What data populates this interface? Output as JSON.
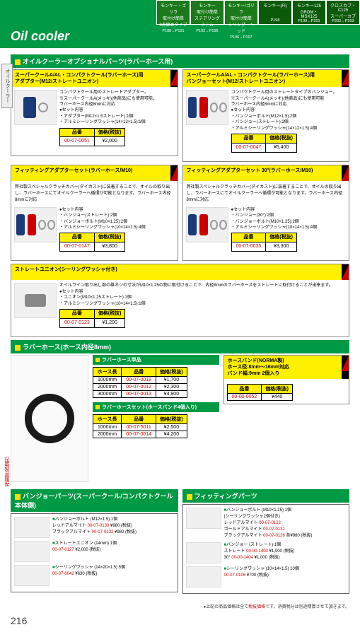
{
  "header": {
    "models": [
      {
        "name": "モンキー・ゴリラ\n取付け簡単\n3点締めタイプ",
        "range": "P188→P191",
        "has_img": true
      },
      {
        "name": "モンキー\n取付け簡単\nステアリングステム",
        "range": "P192→P195",
        "has_img": true
      },
      {
        "name": "モンキー/ゴリラ\n取付け簡単\nシリンダーヘッド",
        "range": "P196→P197",
        "has_img": true
      },
      {
        "name": "モンキー(FI)\n\n",
        "range": "P198",
        "has_img": false
      },
      {
        "name": "モンキー125\nGROM・MSX125\n",
        "range": "P199→P201",
        "has_img": false
      },
      {
        "name": "クロスカブ・C125\nスーパーカブ\n",
        "range": "P202→P203",
        "has_img": false
      }
    ],
    "title": "Oil cooler"
  },
  "sideTab1": "オイルクーラー",
  "sideTab2": "記載製品履歴",
  "section1": {
    "header": "オイルクーラーオプショナルパーツ(ラバーホース用)",
    "cards": {
      "c1": {
        "title": "スーパークールA/AL・コンパクトクール(ラバーホース)用\nアダプター(M12/ストレートユニオン)",
        "desc": "コンパクトクール用のストレートアダプター。\n※スーパークールA(メッキ)(他商品)にも使用可能。\nラバーホース内径8mmに対応\n●セット内容\n・アダプター(M12×1.5ストレート):1個\n・アルミシーリングワッシャ(14×12×1.5):1個",
        "table": {
          "headers": [
            "品番",
            "価格(税抜)"
          ],
          "rows": [
            [
              "00-07-0051",
              "¥2,000"
            ]
          ]
        }
      },
      "c2": {
        "title": "スーパークールA/AL・コンパクトクール(ラバーホース)用\nバンジョーセット(M12/ストレートユニオン)",
        "desc": "コンパクトクール用のストレートタイプのバンジョー。\n※スーパークールA(メッキ)(他商品)にも使用可能\nラバーホース内径8mmに対応\n●セット内容\n・バンジョーボルト(M12×1.5):2個\n・バンジョー(ストレート):2個\n・アルミシーリングワッシャ(14×12×1.5):4個",
        "table": {
          "headers": [
            "品番",
            "価格(税抜)"
          ],
          "rows": [
            [
              "00-07-0047",
              "¥5,400"
            ]
          ]
        }
      },
      "c3": {
        "title": "フィッティングアダプターセット(ラバーホース/M10)",
        "desc": "弊社製スペシャルクラッチカバー(ダイカスト)に装着することで、オイルの取り出し、ラバーホースにてオイルクーラーへ循環が可能となります。ラバーホース内径8mmに対応",
        "desc2": "●セット内容\n・バンジョー(ストレート):2個\n・バンジョーボルト(M10×1.25):2個\n・アルミシーリングワッシャ(10×14×1.5):4個",
        "table": {
          "headers": [
            "品番",
            "価格(税抜)"
          ],
          "rows": [
            [
              "00-07-0147",
              "¥3,800"
            ]
          ]
        }
      },
      "c4": {
        "title": "フィッティングアダプターセット 30°(ラバーホース/M10)",
        "desc": "弊社製スペシャルクラッチカバー(ダイカスト)に装着することで、オイルの取り出し、ラバーホースにてオイルクーラーへ循環が可能となります。ラバーホース内径8mmに対応",
        "desc2": "●セット内容\n・バンジョー(30°):2個\n・バンジョーボルト(M10×1.25):2個\n・アルミシーリングワッシャ(10×14×1.5):4個",
        "table": {
          "headers": [
            "品番",
            "価格(税抜)"
          ],
          "rows": [
            [
              "00-07-0035",
              "¥3,300"
            ]
          ]
        }
      },
      "c5": {
        "title": "ストレートユニオン(シーリングワッシャ付き)",
        "desc": "オイルライン取り出し部の雄ネジの寸法がM10×1.25の物に取付けることで、内径8mmのラバーホースをストレートに取付けることが出来ます。\n●セット内容\n・ユニオン(M10×1.25ストレート):1個\n・アルミシーリングワッシャ(10×14×1.5):1個",
        "table": {
          "headers": [
            "品番",
            "価格(税抜)"
          ],
          "rows": [
            [
              "00-07-0123",
              "¥1,200"
            ]
          ]
        }
      }
    }
  },
  "section2": {
    "header": "ラバーホース(ホース内径8mm)",
    "sub1": {
      "title": "ラバーホース単品",
      "table": {
        "headers": [
          "ホース長",
          "品番",
          "価格(税抜)"
        ],
        "rows": [
          [
            "1000mm",
            "00-07-0018",
            "¥1,700"
          ],
          [
            "2000mm",
            "00-07-0012",
            "¥2,300"
          ],
          [
            "3000mm",
            "00-07-0013",
            "¥4,900"
          ]
        ]
      }
    },
    "sub2": {
      "title": "ラバーホースセット(ホースバンド4個入り)",
      "table": {
        "headers": [
          "ホース長",
          "品番",
          "価格(税抜)"
        ],
        "rows": [
          [
            "1000mm",
            "00-07-5011",
            "¥2,500"
          ],
          [
            "2000mm",
            "00-07-0014",
            "¥4,200"
          ]
        ]
      }
    },
    "sub3": {
      "title": "ホースバンド(NORMA製)\nホース径:8mm～16mm対応\nバンド幅:9mm 2個入り",
      "table": {
        "headers": [
          "品番",
          "価格(税抜)"
        ],
        "rows": [
          [
            "00-00-0052",
            "¥440"
          ]
        ]
      }
    }
  },
  "section3": {
    "left": {
      "header": "バンジョーパーツ(スーパークール/コンパクトクール本体側)",
      "items": [
        {
          "title": "バンジョーボルト (M12×1.5) 1個",
          "lines": [
            "レッドアルマイト 00-07-0130 ¥980 (税抜)",
            "ブラックアルマイト 00-07-0132 ¥980 (税抜)"
          ]
        },
        {
          "title": "ストレートユニオン (14mm) 1個",
          "lines": [
            "00-07-0127 ¥2,000 (税抜)"
          ]
        },
        {
          "title": "シーリングワッシャ (14×20×1.5) 5個",
          "lines": [
            "00-07-0042 ¥630 (税抜)"
          ]
        }
      ]
    },
    "right": {
      "header": "フィッティングパーツ",
      "items": [
        {
          "title": "バンジョーボルト (M10×1.25) 1個\n(シーリングワッシャ2個付き)",
          "lines": [
            "レッドアルマイト 00-07-0122",
            "ゴールドアルマイト 00-07-0131",
            "ブラックアルマイト 00-07-0126 各¥980 (税抜)"
          ]
        },
        {
          "title": "バンジョー (ストレート) 1個",
          "lines": [
            "ストレート 00-00-1403 ¥1,000 (税抜)",
            "30° 00-00-1404 ¥1,000 (税抜)"
          ]
        },
        {
          "title": "シーリングワッシャ (10×14×1.5) 10個",
          "lines": [
            "00-07-0106 ¥700 (税抜)"
          ]
        }
      ]
    }
  },
  "footer": {
    "note": "●上記の商品価格は全て税抜価格です。消費税分は別途精算させて頂きます。",
    "noteHighlight": "税抜価格",
    "page": "216"
  }
}
